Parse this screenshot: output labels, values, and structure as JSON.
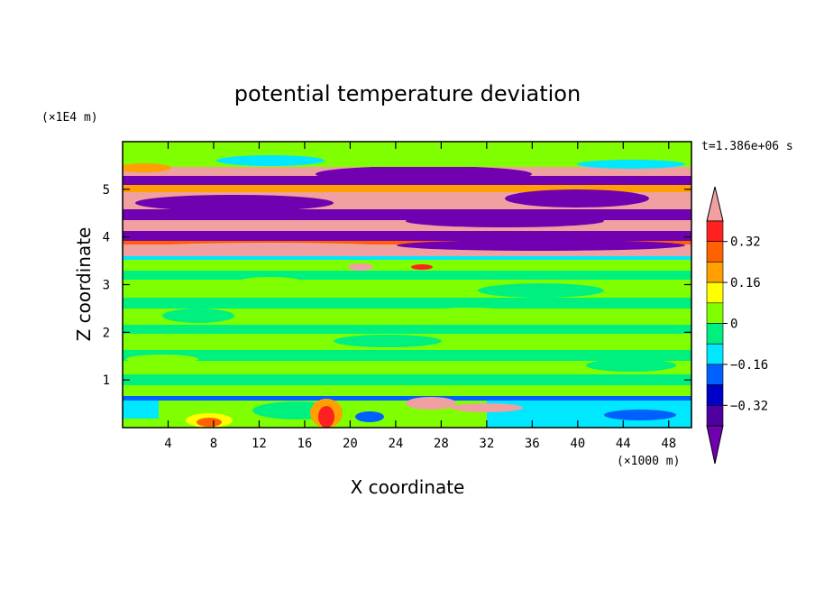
{
  "chart_data": {
    "type": "heatmap",
    "title": "potential temperature deviation",
    "xlabel": "X coordinate",
    "ylabel": "Z coordinate",
    "x_unit": "(×1000 m)",
    "y_unit": "(×1E4 m)",
    "time_label": "t=1.386e+06 s",
    "xlim": [
      0,
      50
    ],
    "ylim": [
      0,
      6
    ],
    "x_ticks": [
      4,
      8,
      12,
      16,
      20,
      24,
      28,
      32,
      36,
      40,
      44,
      48
    ],
    "x_tick_labels": [
      "4",
      "8",
      "12",
      "16",
      "20",
      "24",
      "28",
      "32",
      "36",
      "40",
      "44",
      "48"
    ],
    "y_ticks": [
      1,
      2,
      3,
      4,
      5
    ],
    "y_tick_labels": [
      "1",
      "2",
      "3",
      "4",
      "5"
    ],
    "colorbar": {
      "levels": [
        -0.4,
        -0.32,
        -0.24,
        -0.16,
        -0.08,
        0,
        0.08,
        0.16,
        0.24,
        0.32,
        0.4
      ],
      "labeled_levels": [
        0.32,
        0.16,
        0,
        -0.16,
        -0.32
      ],
      "labels": [
        "0.32",
        "0.16",
        "0",
        "−0.16",
        "−0.32"
      ],
      "colors_top_to_bottom": [
        "#f0a0a0",
        "#ff2020",
        "#ff6000",
        "#ffa000",
        "#ffff00",
        "#80ff00",
        "#00f080",
        "#00e8ff",
        "#0060ff",
        "#0000c8",
        "#5000a0",
        "#7000b0"
      ],
      "extend": "both"
    },
    "bands": [
      {
        "z": [
          0.0,
          0.6
        ],
        "pattern": "near-surface green/cyan with warm plumes near x=8 and x=16-20",
        "value_range": [
          -0.24,
          0.4
        ]
      },
      {
        "z": [
          0.6,
          0.65
        ],
        "pattern": "thin cyan/blue band",
        "value_range": [
          -0.24,
          -0.08
        ]
      },
      {
        "z": [
          0.65,
          3.5
        ],
        "pattern": "mottled green",
        "value_range": [
          -0.08,
          0.08
        ]
      },
      {
        "z": [
          3.5,
          5.6
        ],
        "pattern": "alternating strong layers (pink > 0.4, purple < -0.4)",
        "value_range": [
          -0.4,
          0.4
        ]
      },
      {
        "z": [
          5.6,
          6.0
        ],
        "pattern": "green with cyan patches",
        "value_range": [
          -0.16,
          0.08
        ]
      }
    ]
  }
}
